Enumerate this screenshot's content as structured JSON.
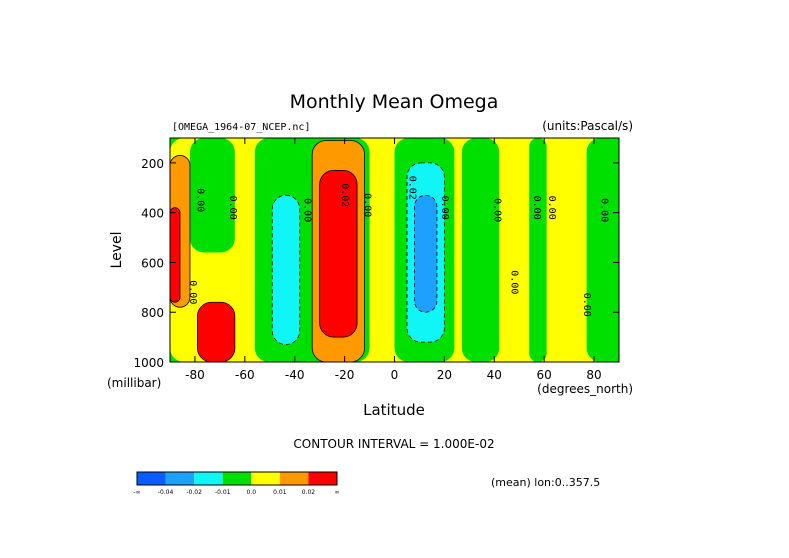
{
  "chart_data": {
    "type": "heatmap",
    "title": "Monthly Mean Omega",
    "dataset_label": "[OMEGA_1964-07_NCEP.nc]",
    "units_label": "(units:Pascal/s)",
    "xlabel": "Latitude",
    "x_units": "(degrees_north)",
    "ylabel": "Level",
    "y_units": "(millibar)",
    "xlim": [
      -90,
      90
    ],
    "ylim": [
      1000,
      100
    ],
    "x_ticks": [
      -80,
      -60,
      -40,
      -20,
      0,
      20,
      40,
      60,
      80
    ],
    "x_tick_labels": [
      "-80",
      "-60",
      "-40",
      "-20",
      "0",
      "20",
      "40",
      "60",
      "80"
    ],
    "y_ticks": [
      200,
      400,
      600,
      800,
      1000
    ],
    "y_tick_labels": [
      "200",
      "400",
      "600",
      "800",
      "1000"
    ],
    "contour_interval_text": "CONTOUR INTERVAL = 1.000E-02",
    "footer_note": "(mean) lon:0..357.5",
    "colorbar": {
      "colors": [
        "#0a5cff",
        "#1ea0ff",
        "#10f5f5",
        "#00e000",
        "#ffff00",
        "#ff9900",
        "#ff0000"
      ],
      "tick_labels": [
        "-∞",
        "-0.04",
        "-0.02",
        "-0.01",
        "0.0",
        "0.01",
        "0.02",
        "∞"
      ]
    },
    "contour_labels": [
      {
        "text": "0.00",
        "lat": -79,
        "level": 350
      },
      {
        "text": "0.00",
        "lat": -66,
        "level": 380
      },
      {
        "text": "0.00",
        "lat": -36,
        "level": 390
      },
      {
        "text": "0.02",
        "lat": -21,
        "level": 330
      },
      {
        "text": "0.00",
        "lat": -12,
        "level": 370
      },
      {
        "text": "0.02",
        "lat": 6,
        "level": 300
      },
      {
        "text": "0.00",
        "lat": 19,
        "level": 380
      },
      {
        "text": "0.00",
        "lat": 40,
        "level": 390
      },
      {
        "text": "0.00",
        "lat": 47,
        "level": 680
      },
      {
        "text": "0.00",
        "lat": 56,
        "level": 380
      },
      {
        "text": "0.00",
        "lat": 62,
        "level": 380
      },
      {
        "text": "0.00",
        "lat": 76,
        "level": 770
      },
      {
        "text": "0.00",
        "lat": 83,
        "level": 390
      },
      {
        "text": "0.00",
        "lat": -82,
        "level": 720
      }
    ],
    "regions": [
      {
        "value_class": 4,
        "lat_range": [
          -90,
          90
        ],
        "level_range": [
          100,
          1000
        ]
      },
      {
        "value_class": 3,
        "lat_range": [
          -82,
          -64
        ],
        "level_range": [
          100,
          560
        ]
      },
      {
        "value_class": 3,
        "lat_range": [
          -56,
          -10
        ],
        "level_range": [
          100,
          1000
        ]
      },
      {
        "value_class": 3,
        "lat_range": [
          0,
          24
        ],
        "level_range": [
          100,
          1000
        ]
      },
      {
        "value_class": 3,
        "lat_range": [
          27,
          42
        ],
        "level_range": [
          100,
          1000
        ]
      },
      {
        "value_class": 3,
        "lat_range": [
          54,
          61
        ],
        "level_range": [
          100,
          1000
        ]
      },
      {
        "value_class": 3,
        "lat_range": [
          77,
          90
        ],
        "level_range": [
          100,
          1000
        ]
      },
      {
        "value_class": 2,
        "lat_range": [
          -49,
          -38
        ],
        "level_range": [
          330,
          930
        ]
      },
      {
        "value_class": 2,
        "lat_range": [
          5,
          20
        ],
        "level_range": [
          200,
          920
        ]
      },
      {
        "value_class": 1,
        "lat_range": [
          8,
          17
        ],
        "level_range": [
          330,
          800
        ]
      },
      {
        "value_class": 5,
        "lat_range": [
          -90,
          -82
        ],
        "level_range": [
          170,
          780
        ]
      },
      {
        "value_class": 5,
        "lat_range": [
          -33,
          -12
        ],
        "level_range": [
          110,
          1000
        ]
      },
      {
        "value_class": 6,
        "lat_range": [
          -90,
          -86
        ],
        "level_range": [
          380,
          760
        ]
      },
      {
        "value_class": 6,
        "lat_range": [
          -30,
          -15
        ],
        "level_range": [
          230,
          900
        ]
      },
      {
        "value_class": 6,
        "lat_range": [
          -79,
          -64
        ],
        "level_range": [
          760,
          1000
        ]
      }
    ]
  }
}
